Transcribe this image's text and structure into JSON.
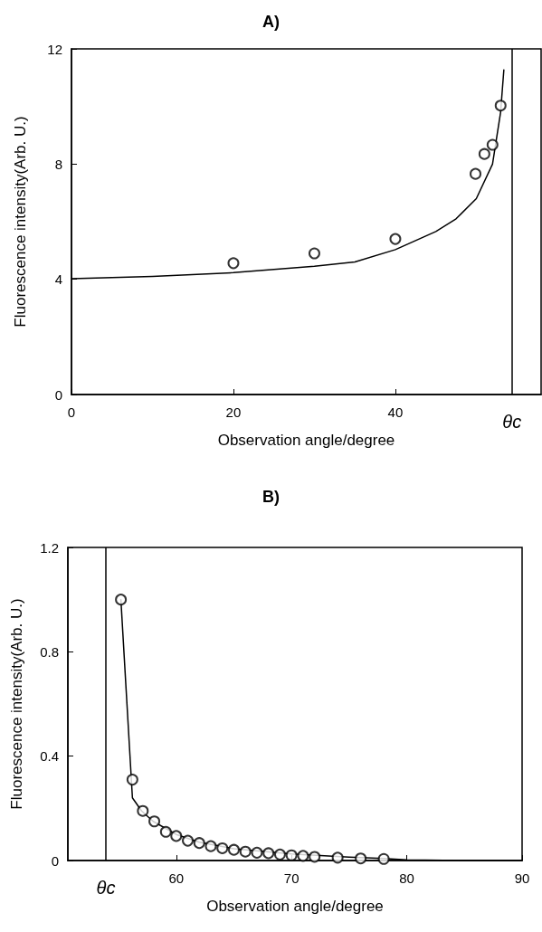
{
  "chart_data": [
    {
      "type": "line",
      "title": "A)",
      "xlabel": "Observation angle/degree",
      "ylabel": "Fluorescence intensity(Arb. U.)",
      "xlim": [
        0,
        58
      ],
      "xticks": [
        0,
        20,
        40
      ],
      "ylim": [
        0,
        12
      ],
      "yticks": [
        0,
        4,
        8,
        12
      ],
      "grid": false,
      "ref_lines": [
        {
          "axis": "x",
          "value": 54.4,
          "label": "θc",
          "color": "#000000",
          "line_style": "solid"
        }
      ],
      "series": [
        {
          "color": "#000000",
          "marker": "none",
          "line_style": "solid",
          "x": [
            0,
            10,
            20,
            30,
            35,
            40,
            45,
            47.5,
            50,
            52,
            53,
            53.4
          ],
          "values": [
            4.02,
            4.1,
            4.23,
            4.45,
            4.6,
            5.03,
            5.66,
            6.1,
            6.8,
            8.0,
            9.8,
            11.27
          ]
        },
        {
          "type": "scatter",
          "color": "#000000",
          "marker": "circle",
          "x": [
            20,
            30,
            40,
            49.9,
            51.0,
            52.0,
            53.0
          ],
          "values": [
            4.56,
            4.9,
            5.4,
            7.66,
            8.35,
            8.67,
            10.03
          ]
        }
      ]
    },
    {
      "type": "line",
      "title": "B)",
      "xlabel": "Observation angle/degree",
      "ylabel": "Fluorescence intensity(Arb. U.)",
      "xlim": [
        50.6,
        90
      ],
      "xticks": [
        60,
        70,
        80,
        90
      ],
      "ylim": [
        0,
        1.2
      ],
      "yticks": [
        0,
        0.4,
        0.8,
        1.2
      ],
      "grid": false,
      "ref_lines": [
        {
          "axis": "x",
          "value": 53.9,
          "label": "θc",
          "color": "#000000",
          "line_style": "solid"
        }
      ],
      "series": [
        {
          "color": "#000000",
          "marker": "none",
          "line_style": "solid",
          "x": [
            55.2,
            56.2,
            57,
            58,
            60,
            62,
            65,
            70,
            75,
            78,
            80,
            85,
            90
          ],
          "values": [
            1.0,
            0.24,
            0.19,
            0.15,
            0.1,
            0.07,
            0.045,
            0.025,
            0.013,
            0.008,
            0.003,
            0,
            0
          ]
        },
        {
          "type": "scatter",
          "color": "#000000",
          "marker": "circle",
          "x": [
            55.2,
            56.2,
            57.1,
            58.1,
            59.1,
            60,
            61,
            62,
            63,
            64,
            65,
            66,
            67,
            68,
            69,
            70,
            71,
            72,
            74,
            76,
            78
          ],
          "values": [
            1.0,
            0.31,
            0.19,
            0.15,
            0.11,
            0.094,
            0.076,
            0.067,
            0.055,
            0.047,
            0.041,
            0.034,
            0.03,
            0.028,
            0.023,
            0.02,
            0.018,
            0.014,
            0.011,
            0.008,
            0.006
          ]
        }
      ]
    }
  ]
}
